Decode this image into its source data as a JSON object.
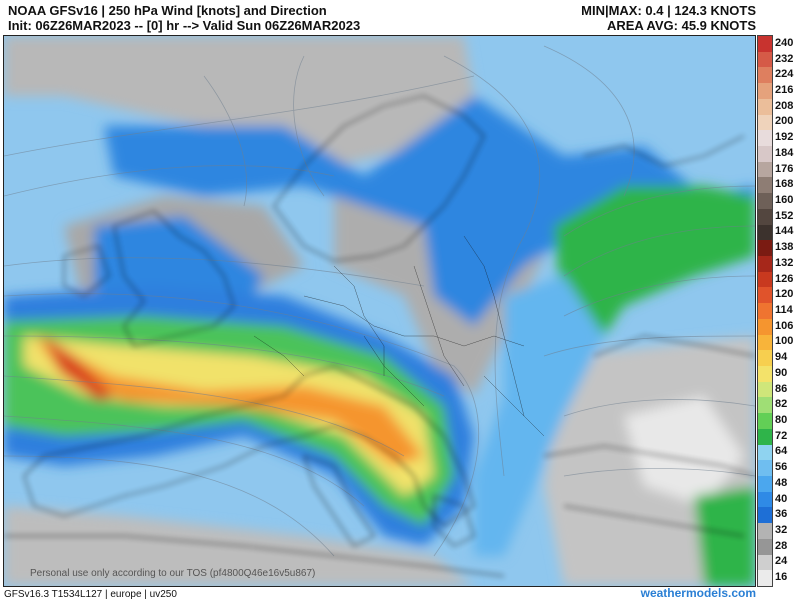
{
  "header": {
    "title": "NOAA GFSv16 | 250 hPa Wind [knots] and Direction",
    "init": "Init: 06Z26MAR2023 -- [0] hr --> Valid Sun 06Z26MAR2023",
    "minmax": "MIN|MAX: 0.4 | 124.3 KNOTS",
    "area_avg": "AREA AVG: 45.9 KNOTS"
  },
  "colorbar": {
    "labels": [
      "240",
      "232",
      "224",
      "216",
      "208",
      "200",
      "192",
      "184",
      "176",
      "168",
      "160",
      "152",
      "144",
      "138",
      "132",
      "126",
      "120",
      "114",
      "106",
      "100",
      "94",
      "90",
      "86",
      "82",
      "80",
      "72",
      "64",
      "56",
      "48",
      "40",
      "36",
      "32",
      "28",
      "24",
      "16"
    ],
    "colors": [
      "#c8332f",
      "#d55a47",
      "#de7f5f",
      "#e5a27c",
      "#ebbe9a",
      "#efd3bb",
      "#e8dcdc",
      "#d8c8c8",
      "#b7a69f",
      "#8e7d74",
      "#6e6058",
      "#53463f",
      "#3c322d",
      "#7a1b12",
      "#a6271a",
      "#c8391f",
      "#e0532b",
      "#ef7430",
      "#f5952f",
      "#f8b43a",
      "#f7cf4f",
      "#f3e26a",
      "#cfe67a",
      "#9fde75",
      "#62cf56",
      "#2fb44a",
      "#8fd3f0",
      "#6fbef0",
      "#4ba7ee",
      "#2f8ae6",
      "#1e6fd6",
      "#b3b3b3",
      "#969696",
      "#cfcfcf",
      "#ebebeb"
    ]
  },
  "map": {
    "region": "europe",
    "tos_text": "Personal use only according to our TOS (pf4800Q46e16v5u867)"
  },
  "footer": {
    "model_info": "GFSv16.3 T1534L127 | europe | uv250",
    "brand": "weathermodels.com"
  }
}
